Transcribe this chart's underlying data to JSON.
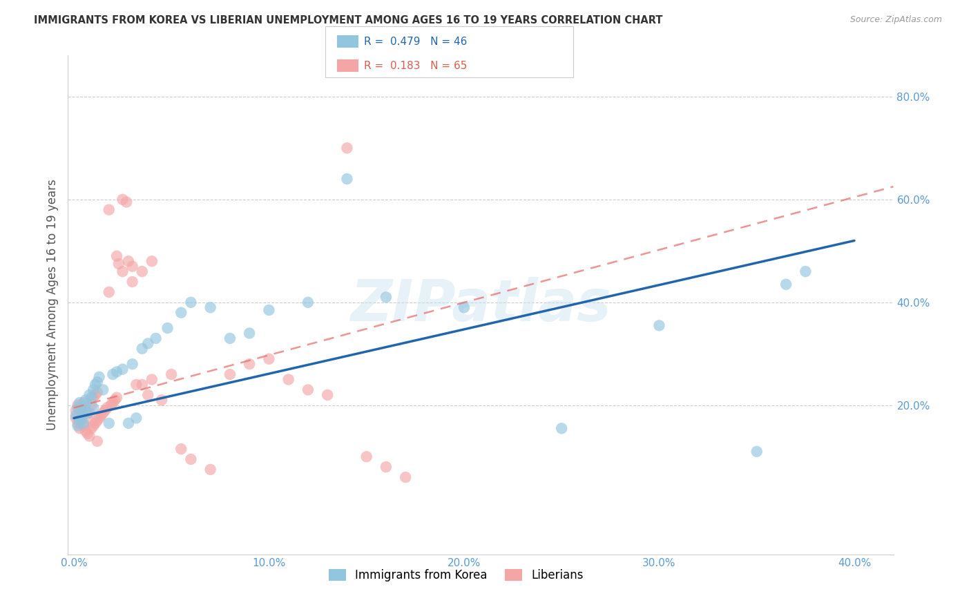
{
  "title": "IMMIGRANTS FROM KOREA VS LIBERIAN UNEMPLOYMENT AMONG AGES 16 TO 19 YEARS CORRELATION CHART",
  "source": "Source: ZipAtlas.com",
  "ylabel": "Unemployment Among Ages 16 to 19 years",
  "color_blue": "#92c5de",
  "color_pink": "#f4a6a6",
  "line_color_blue": "#2166ac",
  "line_color_pink": "#e87070",
  "background_color": "#ffffff",
  "watermark": "ZIPatlas",
  "xlim": [
    -0.003,
    0.42
  ],
  "ylim": [
    -0.09,
    0.88
  ],
  "xtick_vals": [
    0.0,
    0.1,
    0.2,
    0.3,
    0.4
  ],
  "xtick_labels": [
    "0.0%",
    "10.0%",
    "20.0%",
    "30.0%",
    "40.0%"
  ],
  "ytick_vals": [
    0.2,
    0.4,
    0.6,
    0.8
  ],
  "ytick_labels": [
    "20.0%",
    "40.0%",
    "60.0%",
    "80.0%"
  ],
  "korea_line_x": [
    0.0,
    0.4
  ],
  "korea_line_y": [
    0.175,
    0.52
  ],
  "liberia_line_x": [
    0.0,
    0.42
  ],
  "liberia_line_y": [
    0.195,
    0.625
  ],
  "korea_x": [
    0.001,
    0.002,
    0.002,
    0.003,
    0.003,
    0.004,
    0.004,
    0.005,
    0.005,
    0.006,
    0.006,
    0.007,
    0.008,
    0.009,
    0.01,
    0.01,
    0.011,
    0.012,
    0.013,
    0.015,
    0.018,
    0.02,
    0.022,
    0.025,
    0.028,
    0.03,
    0.032,
    0.035,
    0.038,
    0.042,
    0.048,
    0.055,
    0.06,
    0.07,
    0.08,
    0.09,
    0.1,
    0.12,
    0.14,
    0.16,
    0.2,
    0.25,
    0.3,
    0.35,
    0.365,
    0.375
  ],
  "korea_y": [
    0.18,
    0.16,
    0.195,
    0.17,
    0.205,
    0.185,
    0.175,
    0.165,
    0.19,
    0.2,
    0.21,
    0.185,
    0.22,
    0.215,
    0.195,
    0.23,
    0.24,
    0.245,
    0.255,
    0.23,
    0.165,
    0.26,
    0.265,
    0.27,
    0.165,
    0.28,
    0.175,
    0.31,
    0.32,
    0.33,
    0.35,
    0.38,
    0.4,
    0.39,
    0.33,
    0.34,
    0.385,
    0.4,
    0.64,
    0.41,
    0.39,
    0.155,
    0.355,
    0.11,
    0.435,
    0.46
  ],
  "liberia_x": [
    0.001,
    0.001,
    0.002,
    0.002,
    0.003,
    0.003,
    0.004,
    0.004,
    0.005,
    0.005,
    0.006,
    0.006,
    0.007,
    0.007,
    0.008,
    0.008,
    0.009,
    0.009,
    0.01,
    0.01,
    0.011,
    0.011,
    0.012,
    0.012,
    0.013,
    0.014,
    0.015,
    0.016,
    0.017,
    0.018,
    0.019,
    0.02,
    0.021,
    0.022,
    0.023,
    0.025,
    0.027,
    0.03,
    0.032,
    0.035,
    0.038,
    0.04,
    0.045,
    0.05,
    0.055,
    0.06,
    0.07,
    0.08,
    0.09,
    0.1,
    0.11,
    0.12,
    0.13,
    0.14,
    0.15,
    0.16,
    0.17,
    0.018,
    0.025,
    0.03,
    0.04,
    0.022,
    0.028,
    0.035,
    0.012
  ],
  "liberia_y": [
    0.175,
    0.19,
    0.165,
    0.2,
    0.155,
    0.185,
    0.17,
    0.195,
    0.16,
    0.205,
    0.15,
    0.19,
    0.145,
    0.175,
    0.14,
    0.185,
    0.155,
    0.2,
    0.16,
    0.215,
    0.165,
    0.22,
    0.17,
    0.225,
    0.175,
    0.18,
    0.185,
    0.19,
    0.195,
    0.58,
    0.2,
    0.205,
    0.21,
    0.215,
    0.475,
    0.46,
    0.595,
    0.47,
    0.24,
    0.46,
    0.22,
    0.48,
    0.21,
    0.26,
    0.115,
    0.095,
    0.075,
    0.26,
    0.28,
    0.29,
    0.25,
    0.23,
    0.22,
    0.7,
    0.1,
    0.08,
    0.06,
    0.42,
    0.6,
    0.44,
    0.25,
    0.49,
    0.48,
    0.24,
    0.13
  ]
}
